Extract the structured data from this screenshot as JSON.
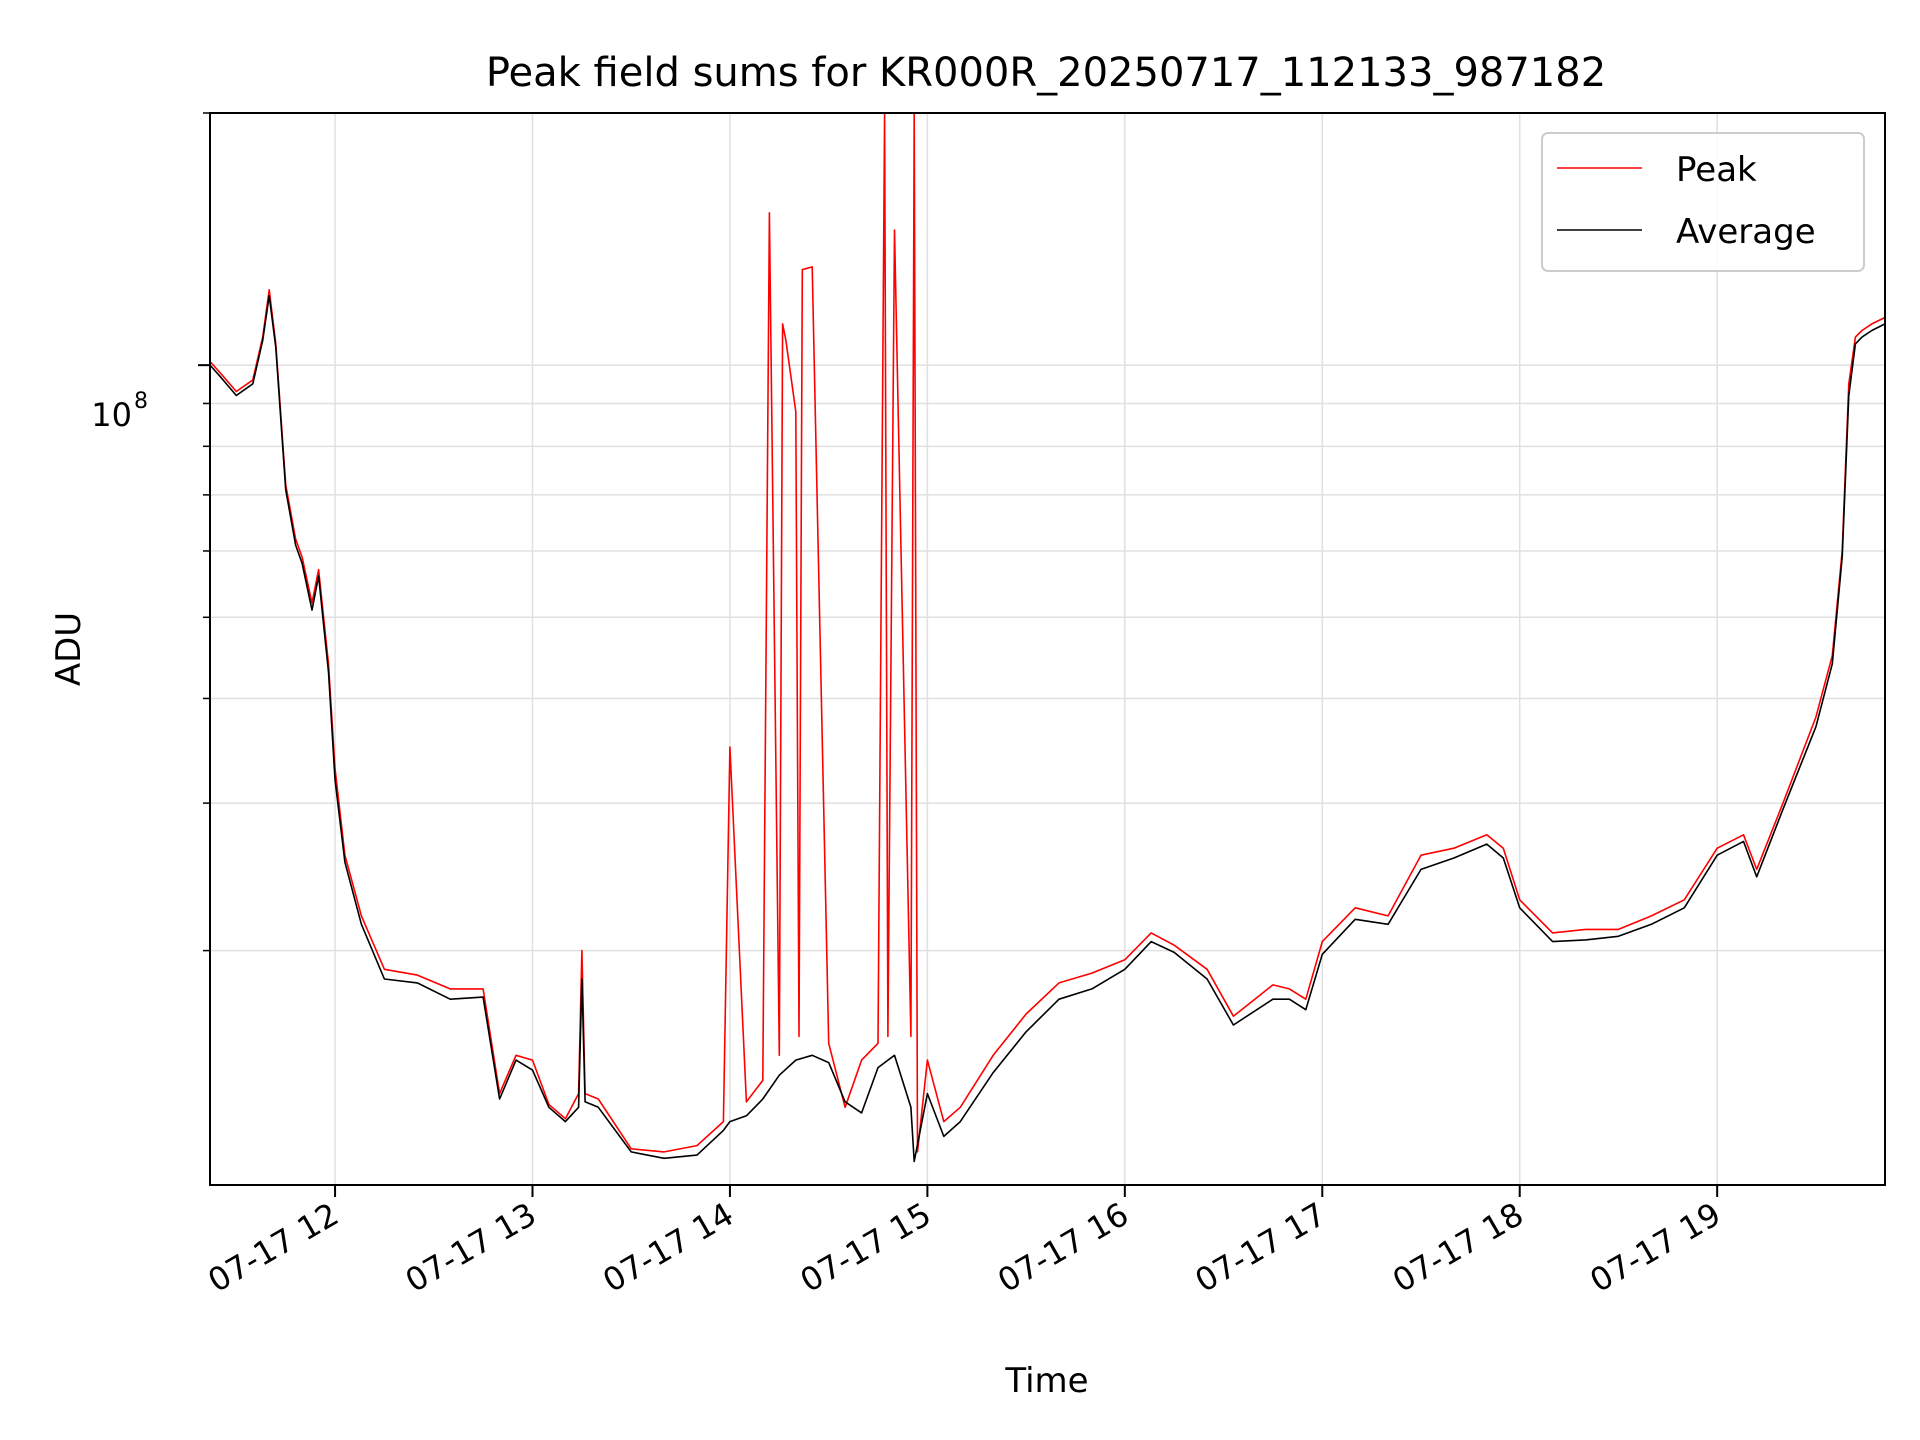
{
  "chart_data": {
    "type": "line",
    "title": "Peak field sums for KR000R_20250717_112133_987182",
    "xlabel": "Time",
    "ylabel": "ADU",
    "y_scale": "log",
    "ylim": [
      10500000,
      200000000
    ],
    "xlim": [
      "07-17 11:22",
      "07-17 19:51"
    ],
    "grid": true,
    "legend_position": "top-right",
    "x_ticks": [
      "07-17 12",
      "07-17 13",
      "07-17 14",
      "07-17 15",
      "07-17 16",
      "07-17 17",
      "07-17 18",
      "07-17 19"
    ],
    "y_tick_label": {
      "base": "10",
      "exp": "8"
    },
    "colors": {
      "peak": "#ff0000",
      "average": "#000000",
      "grid": "#e0e0e0"
    },
    "series": [
      {
        "name": "Peak",
        "color": "#ff0000",
        "x": [
          "07-17 11:22",
          "07-17 11:25",
          "07-17 11:30",
          "07-17 11:35",
          "07-17 11:38",
          "07-17 11:40",
          "07-17 11:42",
          "07-17 11:45",
          "07-17 11:48",
          "07-17 11:50",
          "07-17 11:53",
          "07-17 11:55",
          "07-17 11:58",
          "07-17 12:00",
          "07-17 12:03",
          "07-17 12:08",
          "07-17 12:15",
          "07-17 12:25",
          "07-17 12:35",
          "07-17 12:45",
          "07-17 12:50",
          "07-17 12:55",
          "07-17 13:00",
          "07-17 13:05",
          "07-17 13:10",
          "07-17 13:14",
          "07-17 13:15",
          "07-17 13:16",
          "07-17 13:20",
          "07-17 13:30",
          "07-17 13:40",
          "07-17 13:50",
          "07-17 13:58",
          "07-17 14:00",
          "07-17 14:05",
          "07-17 14:10",
          "07-17 14:12",
          "07-17 14:15",
          "07-17 14:16",
          "07-17 14:17",
          "07-17 14:20",
          "07-17 14:21",
          "07-17 14:22",
          "07-17 14:25",
          "07-17 14:30",
          "07-17 14:35",
          "07-17 14:40",
          "07-17 14:45",
          "07-17 14:47",
          "07-17 14:48",
          "07-17 14:50",
          "07-17 14:55",
          "07-17 14:56",
          "07-17 14:57",
          "07-17 15:00",
          "07-17 15:05",
          "07-17 15:10",
          "07-17 15:20",
          "07-17 15:30",
          "07-17 15:40",
          "07-17 15:50",
          "07-17 16:00",
          "07-17 16:08",
          "07-17 16:15",
          "07-17 16:25",
          "07-17 16:33",
          "07-17 16:45",
          "07-17 16:50",
          "07-17 16:55",
          "07-17 17:00",
          "07-17 17:10",
          "07-17 17:20",
          "07-17 17:30",
          "07-17 17:40",
          "07-17 17:50",
          "07-17 17:55",
          "07-17 18:00",
          "07-17 18:10",
          "07-17 18:20",
          "07-17 18:30",
          "07-17 18:40",
          "07-17 18:50",
          "07-17 19:00",
          "07-17 19:08",
          "07-17 19:12",
          "07-17 19:20",
          "07-17 19:30",
          "07-17 19:35",
          "07-17 19:38",
          "07-17 19:40",
          "07-17 19:42",
          "07-17 19:44",
          "07-17 19:47",
          "07-17 19:51"
        ],
        "y": [
          101000000,
          98000000,
          93000000,
          96000000,
          108000000,
          123000000,
          106000000,
          72000000,
          62000000,
          59000000,
          52000000,
          57000000,
          44000000,
          33000000,
          26000000,
          22000000,
          19000000,
          18700000,
          18000000,
          18000000,
          13500000,
          15000000,
          14800000,
          13100000,
          12600000,
          13500000,
          20000000,
          13500000,
          13300000,
          11600000,
          11500000,
          11700000,
          12500000,
          35000000,
          13200000,
          14000000,
          152000000,
          15000000,
          112000000,
          107000000,
          88000000,
          15800000,
          130000000,
          131000000,
          15500000,
          13000000,
          14800000,
          15500000,
          200000000,
          15800000,
          145000000,
          15800000,
          200000000,
          11500000,
          14800000,
          12500000,
          13000000,
          15000000,
          16800000,
          18300000,
          18800000,
          19500000,
          21000000,
          20300000,
          19000000,
          16700000,
          18200000,
          18000000,
          17500000,
          20500000,
          22500000,
          22000000,
          26000000,
          26500000,
          27500000,
          26500000,
          23000000,
          21000000,
          21200000,
          21200000,
          22000000,
          23000000,
          26500000,
          27500000,
          25000000,
          30000000,
          38000000,
          45000000,
          60000000,
          95000000,
          108000000,
          110000000,
          112000000,
          114000000
        ]
      },
      {
        "name": "Average",
        "color": "#000000",
        "x": [
          "07-17 11:22",
          "07-17 11:25",
          "07-17 11:30",
          "07-17 11:35",
          "07-17 11:38",
          "07-17 11:40",
          "07-17 11:42",
          "07-17 11:45",
          "07-17 11:48",
          "07-17 11:50",
          "07-17 11:53",
          "07-17 11:55",
          "07-17 11:58",
          "07-17 12:00",
          "07-17 12:03",
          "07-17 12:08",
          "07-17 12:15",
          "07-17 12:25",
          "07-17 12:35",
          "07-17 12:45",
          "07-17 12:50",
          "07-17 12:55",
          "07-17 13:00",
          "07-17 13:05",
          "07-17 13:10",
          "07-17 13:14",
          "07-17 13:15",
          "07-17 13:16",
          "07-17 13:20",
          "07-17 13:30",
          "07-17 13:40",
          "07-17 13:50",
          "07-17 13:58",
          "07-17 14:00",
          "07-17 14:05",
          "07-17 14:10",
          "07-17 14:15",
          "07-17 14:20",
          "07-17 14:25",
          "07-17 14:30",
          "07-17 14:35",
          "07-17 14:40",
          "07-17 14:45",
          "07-17 14:50",
          "07-17 14:55",
          "07-17 14:56",
          "07-17 15:00",
          "07-17 15:05",
          "07-17 15:10",
          "07-17 15:20",
          "07-17 15:30",
          "07-17 15:40",
          "07-17 15:50",
          "07-17 16:00",
          "07-17 16:08",
          "07-17 16:15",
          "07-17 16:25",
          "07-17 16:33",
          "07-17 16:45",
          "07-17 16:50",
          "07-17 16:55",
          "07-17 17:00",
          "07-17 17:10",
          "07-17 17:20",
          "07-17 17:30",
          "07-17 17:40",
          "07-17 17:50",
          "07-17 17:55",
          "07-17 18:00",
          "07-17 18:10",
          "07-17 18:20",
          "07-17 18:30",
          "07-17 18:40",
          "07-17 18:50",
          "07-17 19:00",
          "07-17 19:08",
          "07-17 19:12",
          "07-17 19:20",
          "07-17 19:30",
          "07-17 19:35",
          "07-17 19:38",
          "07-17 19:40",
          "07-17 19:42",
          "07-17 19:44",
          "07-17 19:47",
          "07-17 19:51"
        ],
        "y": [
          100000000,
          97000000,
          92000000,
          95000000,
          107000000,
          121000000,
          105000000,
          71000000,
          61000000,
          58000000,
          51000000,
          56000000,
          43000000,
          32000000,
          25500000,
          21500000,
          18500000,
          18300000,
          17500000,
          17600000,
          13300000,
          14800000,
          14400000,
          13000000,
          12500000,
          13000000,
          18500000,
          13200000,
          13000000,
          11500000,
          11300000,
          11400000,
          12200000,
          12500000,
          12700000,
          13300000,
          14200000,
          14800000,
          15000000,
          14700000,
          13200000,
          12800000,
          14500000,
          15000000,
          13000000,
          11200000,
          13500000,
          12000000,
          12500000,
          14300000,
          16000000,
          17500000,
          18000000,
          19000000,
          20500000,
          19900000,
          18500000,
          16300000,
          17500000,
          17500000,
          17000000,
          19800000,
          21800000,
          21500000,
          25000000,
          25800000,
          26800000,
          25800000,
          22500000,
          20500000,
          20600000,
          20800000,
          21500000,
          22500000,
          26000000,
          27000000,
          24500000,
          29500000,
          37000000,
          44000000,
          59000000,
          92000000,
          106000000,
          108000000,
          110000000,
          112000000
        ]
      }
    ]
  }
}
